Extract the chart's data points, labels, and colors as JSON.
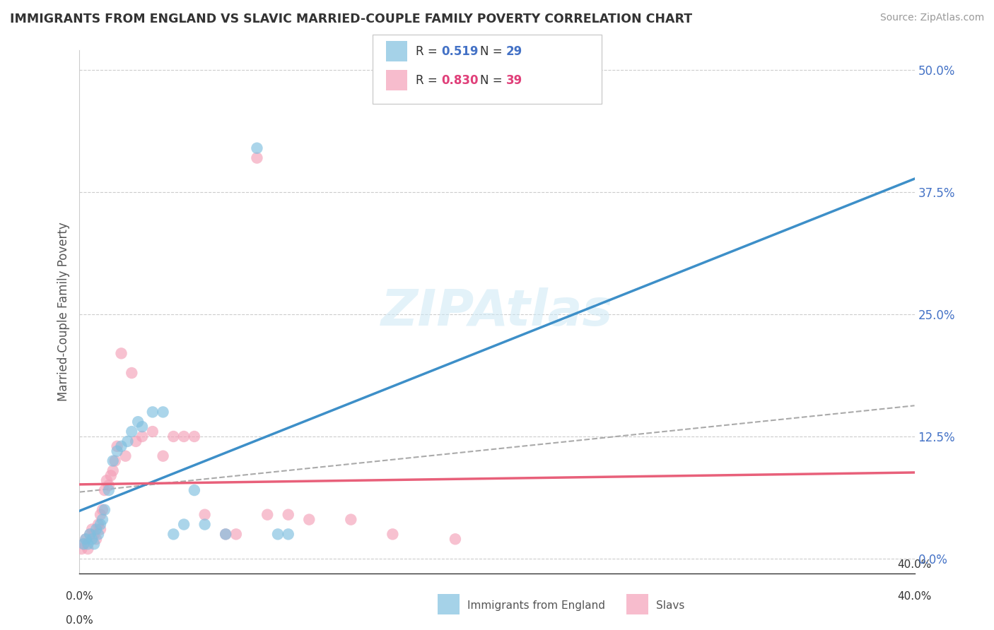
{
  "title": "IMMIGRANTS FROM ENGLAND VS SLAVIC MARRIED-COUPLE FAMILY POVERTY CORRELATION CHART",
  "source": "Source: ZipAtlas.com",
  "ylabel": "Married-Couple Family Poverty",
  "ytick_values": [
    0.0,
    12.5,
    25.0,
    37.5,
    50.0
  ],
  "xlim": [
    0.0,
    40.0
  ],
  "ylim": [
    -1.5,
    52.0
  ],
  "watermark": "ZIPAtlas",
  "legend_R1_val": "0.519",
  "legend_N1_val": "29",
  "legend_R2_val": "0.830",
  "legend_N2_val": "39",
  "color_england": "#7fbfdf",
  "color_slavic": "#f4a0b8",
  "color_trendline_england": "#3d8fc8",
  "color_trendline_slavic": "#e8607a",
  "color_trendline_dashed": "#aaaaaa",
  "england_x": [
    0.2,
    0.3,
    0.4,
    0.5,
    0.6,
    0.7,
    0.8,
    0.9,
    1.0,
    1.1,
    1.2,
    1.4,
    1.6,
    1.8,
    2.0,
    2.3,
    2.5,
    2.8,
    3.0,
    3.5,
    4.0,
    4.5,
    5.0,
    5.5,
    6.0,
    7.0,
    8.5,
    9.5,
    10.0
  ],
  "england_y": [
    1.5,
    2.0,
    1.5,
    2.5,
    2.0,
    1.5,
    3.0,
    2.5,
    3.5,
    4.0,
    5.0,
    7.0,
    10.0,
    11.0,
    11.5,
    12.0,
    13.0,
    14.0,
    13.5,
    15.0,
    15.0,
    2.5,
    3.5,
    7.0,
    3.5,
    2.5,
    42.0,
    2.5,
    2.5
  ],
  "slavic_x": [
    0.1,
    0.2,
    0.3,
    0.4,
    0.5,
    0.6,
    0.7,
    0.8,
    0.9,
    1.0,
    1.0,
    1.1,
    1.2,
    1.3,
    1.4,
    1.5,
    1.6,
    1.7,
    1.8,
    2.0,
    2.2,
    2.5,
    2.7,
    3.0,
    3.5,
    4.0,
    4.5,
    5.0,
    5.5,
    6.0,
    7.0,
    7.5,
    8.5,
    9.0,
    10.0,
    11.0,
    13.0,
    15.0,
    18.0
  ],
  "slavic_y": [
    1.0,
    1.5,
    2.0,
    1.0,
    2.5,
    3.0,
    2.5,
    2.0,
    3.5,
    4.5,
    3.0,
    5.0,
    7.0,
    8.0,
    7.5,
    8.5,
    9.0,
    10.0,
    11.5,
    21.0,
    10.5,
    19.0,
    12.0,
    12.5,
    13.0,
    10.5,
    12.5,
    12.5,
    12.5,
    4.5,
    2.5,
    2.5,
    41.0,
    4.5,
    4.5,
    4.0,
    4.0,
    2.5,
    2.0
  ],
  "legend_label1": "Immigrants from England",
  "legend_label2": "Slavs"
}
